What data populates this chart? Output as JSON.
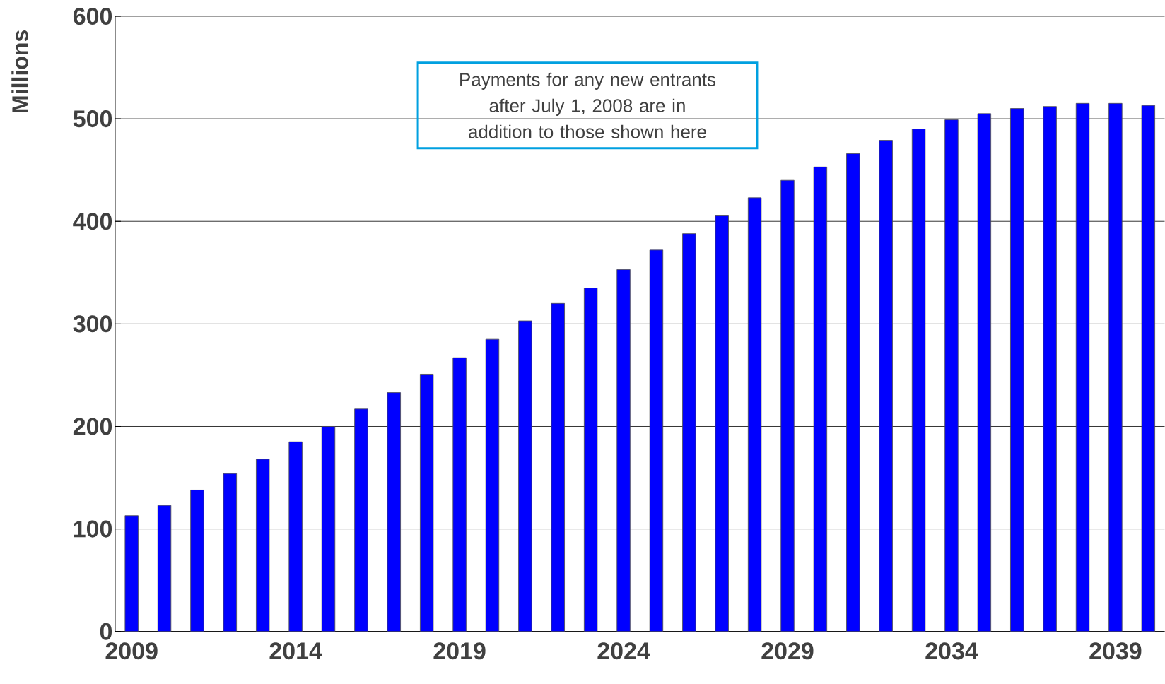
{
  "chart_data": {
    "type": "bar",
    "ylabel": "Millions",
    "categories": [
      "2009",
      null,
      null,
      null,
      null,
      "2014",
      null,
      null,
      null,
      null,
      "2019",
      null,
      null,
      null,
      null,
      "2024",
      null,
      null,
      null,
      null,
      "2029",
      null,
      null,
      null,
      null,
      "2034",
      null,
      null,
      null,
      null,
      "2039",
      null
    ],
    "values": [
      113,
      123,
      138,
      154,
      168,
      185,
      200,
      217,
      233,
      251,
      267,
      285,
      303,
      320,
      335,
      353,
      372,
      388,
      406,
      423,
      440,
      453,
      466,
      479,
      490,
      499,
      505,
      510,
      512,
      515,
      515,
      513
    ],
    "color": "#0000ff",
    "ylim": [
      0,
      600
    ],
    "yticks": [
      0,
      100,
      200,
      300,
      400,
      500,
      600
    ],
    "grid": "y",
    "annotations": [
      "Payments for any new entrants after July 1, 2008 are in addition to those shown here"
    ]
  }
}
